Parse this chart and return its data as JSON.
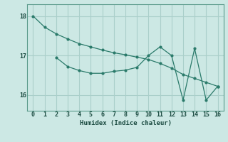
{
  "xlabel": "Humidex (Indice chaleur)",
  "background_color": "#cce8e4",
  "grid_color": "#aacfca",
  "line_color": "#2a7a6a",
  "line1_x": [
    0,
    1,
    2,
    3,
    4,
    5,
    6,
    7,
    8,
    9,
    10,
    11,
    12,
    13,
    14,
    15,
    16
  ],
  "line1_y": [
    18.0,
    17.72,
    17.55,
    17.42,
    17.3,
    17.22,
    17.14,
    17.07,
    17.02,
    16.96,
    16.9,
    16.8,
    16.68,
    16.52,
    16.42,
    16.32,
    16.22
  ],
  "line2_x": [
    2,
    3,
    4,
    5,
    6,
    7,
    8,
    9,
    10,
    11,
    12,
    13,
    14,
    15,
    16
  ],
  "line2_y": [
    16.95,
    16.72,
    16.62,
    16.55,
    16.55,
    16.6,
    16.63,
    16.7,
    17.0,
    17.22,
    17.0,
    15.87,
    17.18,
    15.87,
    16.22
  ],
  "ylim": [
    15.6,
    18.3
  ],
  "xlim": [
    -0.5,
    16.5
  ],
  "yticks": [
    16,
    17,
    18
  ],
  "xticks": [
    0,
    1,
    2,
    3,
    4,
    5,
    6,
    7,
    8,
    9,
    10,
    11,
    12,
    13,
    14,
    15,
    16
  ]
}
